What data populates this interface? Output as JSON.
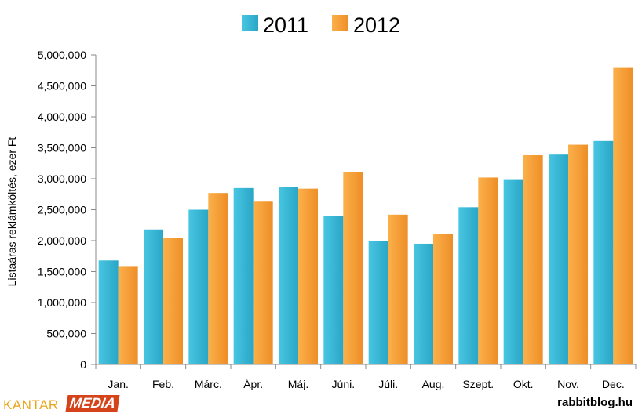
{
  "chart_data": {
    "type": "bar",
    "title": "",
    "xlabel": "",
    "ylabel": "Listaáras reklámköltés, ezer Ft",
    "categories": [
      "Jan.",
      "Feb.",
      "Márc.",
      "Ápr.",
      "Máj.",
      "Júni.",
      "Júli.",
      "Aug.",
      "Szept.",
      "Okt.",
      "Nov.",
      "Dec."
    ],
    "series": [
      {
        "name": "2011",
        "color": "#3bbcd8",
        "values": [
          1680000,
          2180000,
          2500000,
          2850000,
          2870000,
          2400000,
          1990000,
          1950000,
          2540000,
          2980000,
          3390000,
          3610000
        ]
      },
      {
        "name": "2012",
        "color": "#f7a23b",
        "values": [
          1590000,
          2040000,
          2770000,
          2630000,
          2840000,
          3110000,
          2420000,
          2110000,
          3020000,
          3380000,
          3550000,
          4790000
        ]
      }
    ],
    "ylim": [
      0,
      5000000
    ],
    "yticks": [
      "0",
      "500,000",
      "1,000,000",
      "1,500,000",
      "2,000,000",
      "2,500,000",
      "3,000,000",
      "3,500,000",
      "4,000,000",
      "4,500,000",
      "5,000,000"
    ],
    "grid": false,
    "legend": "top-center"
  },
  "footer": {
    "brand_left": "KANTAR",
    "brand_right": "MEDIA",
    "credit": "rabbitblog.hu"
  }
}
